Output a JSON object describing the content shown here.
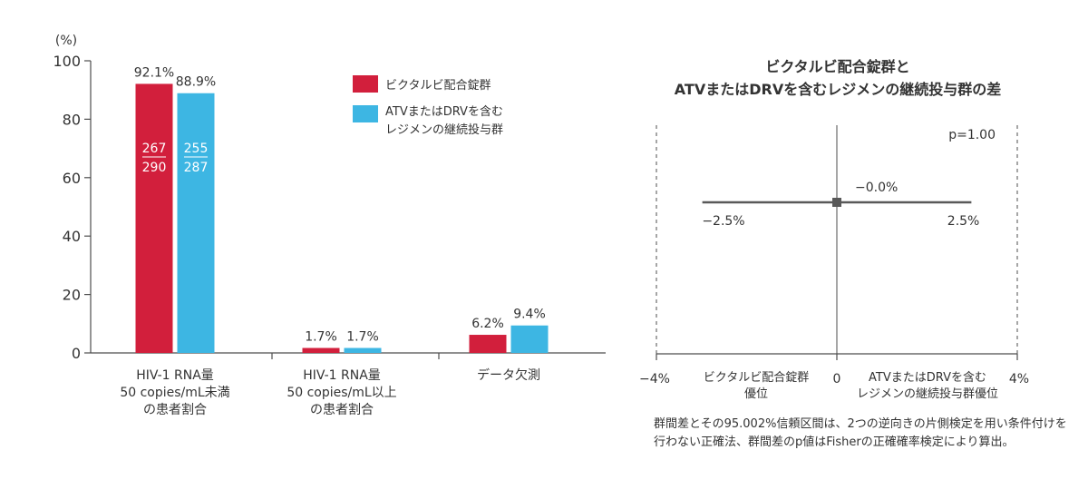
{
  "colors": {
    "bictarvy": "#d21f3c",
    "comparator": "#3db6e3",
    "axis": "#4d4d4d",
    "text": "#333333"
  },
  "chart_data": [
    {
      "type": "bar",
      "y_unit": "(%)",
      "ylim": [
        0,
        100
      ],
      "yticks": [
        "0",
        "20",
        "40",
        "60",
        "80",
        "100"
      ],
      "categories": [
        [
          "HIV-1 RNA量",
          "50 copies/mL未満",
          "の患者割合"
        ],
        [
          "HIV-1 RNA量",
          "50 copies/mL以上",
          "の患者割合"
        ],
        [
          "データ欠測"
        ]
      ],
      "series": [
        {
          "name": "ビクタルビ配合錠群",
          "values": [
            92.1,
            1.7,
            6.2
          ],
          "labels": [
            "92.1%",
            "1.7%",
            "6.2%"
          ],
          "fraction": [
            "267",
            "290"
          ]
        },
        {
          "name": "ATVまたはDRVを含む\nレジメンの継続投与群",
          "values": [
            88.9,
            1.7,
            9.4
          ],
          "labels": [
            "88.9%",
            "1.7%",
            "9.4%"
          ],
          "fraction": [
            "255",
            "287"
          ]
        }
      ],
      "legend_position": "top-right"
    },
    {
      "type": "forest",
      "title": [
        "ビクタルビ配合錠群と",
        "ATVまたはDRVを含むレジメンの継続投与群の差"
      ],
      "xlim": [
        -4,
        4
      ],
      "xticks": [
        "−4%",
        "0",
        "4%"
      ],
      "estimate": 0.0,
      "ci": [
        -2.5,
        2.5
      ],
      "estimate_label": "−0.0%",
      "ci_low_label": "−2.5%",
      "ci_high_label": "2.5%",
      "p_value": "p=1.00",
      "left_favors": [
        "ビクタルビ配合錠群",
        "優位"
      ],
      "right_favors": [
        "ATVまたはDRVを含む",
        "レジメンの継続投与群優位"
      ]
    }
  ],
  "footnote": "群間差とその95.002%信頼区間は、2つの逆向きの片側検定を用い条件付けを行わない正確法、群間差のp値はFisherの正確確率検定により算出。"
}
